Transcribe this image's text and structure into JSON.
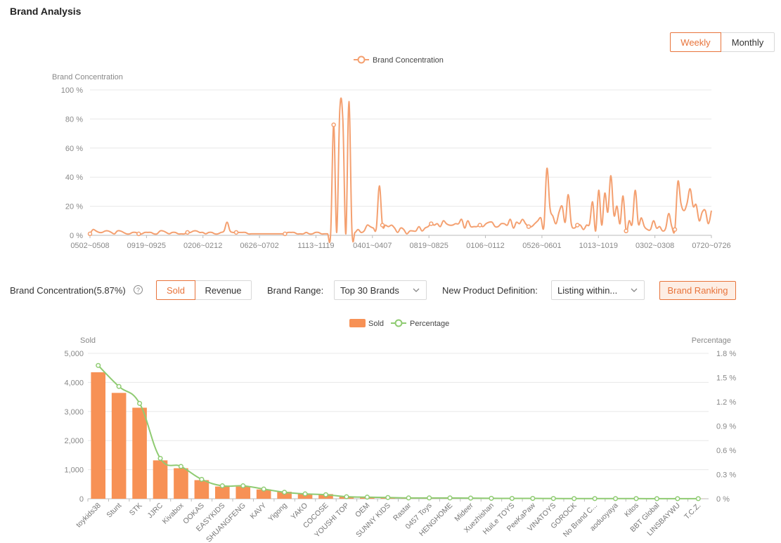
{
  "page_title": "Brand Analysis",
  "period_toggle": {
    "weekly": "Weekly",
    "monthly": "Monthly",
    "active": "weekly"
  },
  "concentration_label": "Brand Concentration(5.87%)",
  "metric_toggle": {
    "sold": "Sold",
    "revenue": "Revenue",
    "active": "sold"
  },
  "brand_range": {
    "label": "Brand Range:",
    "value": "Top 30 Brands"
  },
  "new_product": {
    "label": "New Product Definition:",
    "value": "Listing within..."
  },
  "ranking_button": "Brand Ranking",
  "colors": {
    "accent": "#e8743b",
    "line1": "#f4a070",
    "bar": "#f79155",
    "line2": "#8fcb72",
    "grid": "#e8e8e8"
  },
  "chart_data": [
    {
      "type": "line",
      "legend": [
        "Brand Concentration"
      ],
      "ylabel": "Brand Concentration",
      "ylim": [
        0,
        100
      ],
      "yticks": [
        "0 %",
        "20 %",
        "40 %",
        "60 %",
        "80 %",
        "100 %"
      ],
      "xtick_labels": [
        "0502~0508",
        "0919~0925",
        "0206~0212",
        "0626~0702",
        "1113~1119",
        "0401~0407",
        "0819~0825",
        "0106~0112",
        "0526~0601",
        "1013~1019",
        "0302~0308",
        "0720~0726"
      ],
      "series": [
        {
          "name": "Brand Concentration",
          "values": [
            1,
            4,
            3,
            2,
            2,
            3,
            3,
            2,
            1,
            3,
            3,
            2,
            1,
            1,
            2,
            2,
            1,
            1,
            2,
            2,
            2,
            1,
            1,
            3,
            3,
            2,
            1,
            2,
            2,
            1,
            1,
            1,
            2,
            2,
            3,
            3,
            2,
            2,
            1,
            2,
            2,
            1,
            1,
            2,
            3,
            9,
            3,
            2,
            2,
            2,
            2,
            2,
            1,
            1,
            1,
            1,
            1,
            1,
            1,
            1,
            1,
            1,
            1,
            1,
            1,
            2,
            2,
            2,
            1,
            1,
            1,
            2,
            1,
            1,
            2,
            2,
            1,
            1,
            1,
            1,
            76,
            2,
            86,
            80,
            1,
            92,
            3,
            2,
            4,
            2,
            3,
            7,
            6,
            5,
            5,
            34,
            7,
            7,
            6,
            7,
            5,
            2,
            5,
            4,
            1,
            3,
            3,
            3,
            6,
            3,
            5,
            6,
            8,
            7,
            8,
            6,
            10,
            8,
            7,
            7,
            8,
            8,
            11,
            5,
            10,
            6,
            6,
            6,
            7,
            6,
            8,
            9,
            9,
            6,
            6,
            8,
            8,
            7,
            11,
            5,
            9,
            8,
            11,
            8,
            6,
            6,
            8,
            10,
            12,
            6,
            46,
            19,
            13,
            8,
            16,
            20,
            9,
            28,
            8,
            5,
            7,
            7,
            4,
            7,
            8,
            23,
            3,
            31,
            7,
            29,
            16,
            41,
            14,
            20,
            8,
            27,
            3,
            10,
            8,
            31,
            8,
            12,
            6,
            4,
            4,
            10,
            5,
            6,
            3,
            5,
            15,
            6,
            4,
            37,
            22,
            17,
            22,
            32,
            20,
            21,
            10,
            16,
            17,
            8,
            17
          ]
        }
      ]
    },
    {
      "type": "bar",
      "legend": [
        "Sold",
        "Percentage"
      ],
      "ylabel": "Sold",
      "y2label": "Percentage",
      "ylim": [
        0,
        5000
      ],
      "yticks": [
        "0",
        "1,000",
        "2,000",
        "3,000",
        "4,000",
        "5,000"
      ],
      "y2lim": [
        0,
        1.8
      ],
      "y2ticks": [
        "0 %",
        "0.3 %",
        "0.6 %",
        "0.9 %",
        "1.2 %",
        "1.5 %",
        "1.8 %"
      ],
      "categories": [
        "toykids38",
        "Stunt",
        "STK",
        "JJRC",
        "Kivabox",
        "OOKAS",
        "EASYKIDS",
        "SHUANGFENG",
        "KAVY",
        "Yigong",
        "YAKO",
        "COCOSE",
        "YOUSHI TOP",
        "OEM",
        "SUNNY KIDS",
        "Rastar",
        "0457 Toys",
        "HENGHOME",
        "Mideer",
        "Xuezhishan",
        "HuiLe TOYS",
        "PeeKaPaw",
        "VINATOYS",
        "GOROCK",
        "No Brand C...",
        "aoduoyaya",
        "Kitos",
        "BBT Global",
        "LINSBAYWU",
        "T.C.Z."
      ],
      "series": [
        {
          "name": "Sold",
          "values": [
            4350,
            3640,
            3130,
            1320,
            1050,
            640,
            420,
            420,
            320,
            240,
            180,
            160,
            70,
            60,
            40,
            30,
            30,
            25,
            20,
            15,
            10,
            10,
            8,
            6,
            5,
            5,
            4,
            4,
            3,
            3
          ]
        },
        {
          "name": "Percentage",
          "values": [
            1.65,
            1.39,
            1.18,
            0.5,
            0.4,
            0.24,
            0.16,
            0.16,
            0.12,
            0.08,
            0.06,
            0.05,
            0.025,
            0.02,
            0.015,
            0.01,
            0.01,
            0.01,
            0.008,
            0.005,
            0.004,
            0.004,
            0.003,
            0.002,
            0.002,
            0.002,
            0.002,
            0.001,
            0.001,
            0.001
          ]
        }
      ]
    }
  ]
}
